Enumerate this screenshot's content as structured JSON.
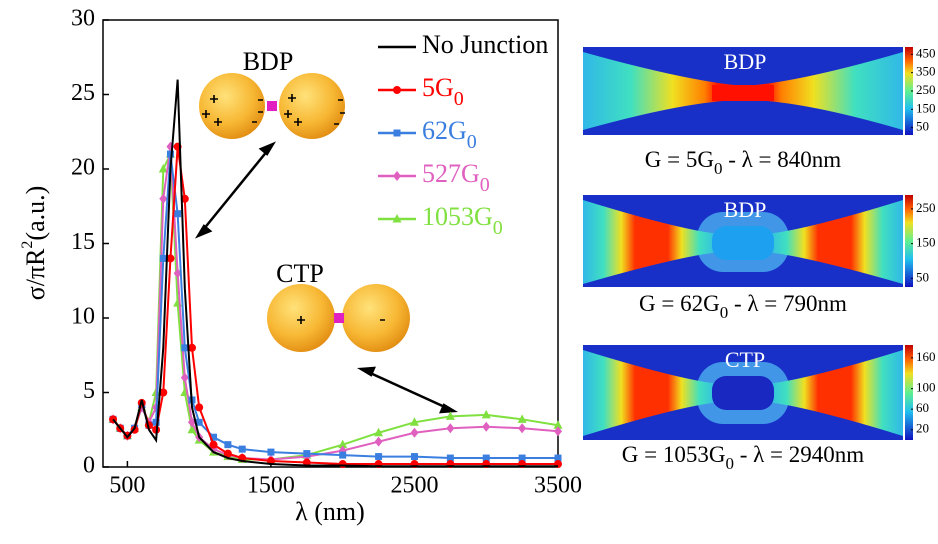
{
  "chart_data": {
    "type": "line",
    "xlabel": "λ (nm)",
    "ylabel": {
      "main": "σ/πR",
      "sup": "2",
      "tail": "(a.u.)"
    },
    "x": [
      400,
      450,
      500,
      550,
      600,
      650,
      700,
      750,
      800,
      850,
      900,
      950,
      1000,
      1100,
      1200,
      1300,
      1500,
      1750,
      2000,
      2250,
      2500,
      2750,
      3000,
      3250,
      3500
    ],
    "xlim": [
      330,
      3500
    ],
    "xticks": [
      500,
      1500,
      2500,
      3500
    ],
    "ylim": [
      0,
      30
    ],
    "yticks": [
      0,
      5,
      10,
      15,
      20,
      25,
      30
    ],
    "legend": "upper right",
    "series": [
      {
        "name": "No Junction",
        "color": "#000000",
        "marker": "none",
        "values": [
          3.2,
          2.6,
          2.0,
          2.6,
          4.5,
          2.5,
          1.8,
          8,
          20,
          26,
          12,
          4,
          2,
          1,
          0.6,
          0.4,
          0.2,
          0.1,
          0.1,
          0.05,
          0.05,
          0.05,
          0.05,
          0.05,
          0.05
        ]
      },
      {
        "name": "5G",
        "subscript": "0",
        "color": "#ff0000",
        "marker": "circle",
        "values": [
          3.2,
          2.6,
          2.1,
          2.5,
          4.3,
          2.8,
          2.5,
          5,
          14,
          21.5,
          18,
          8,
          4,
          1.5,
          0.9,
          0.6,
          0.4,
          0.3,
          0.2,
          0.2,
          0.2,
          0.2,
          0.2,
          0.2,
          0.2
        ]
      },
      {
        "name": "62G",
        "subscript": "0",
        "color": "#3a7fe0",
        "marker": "square",
        "values": [
          3.2,
          2.6,
          2.1,
          2.6,
          4.2,
          2.8,
          3,
          14,
          21,
          17,
          8,
          4.5,
          3,
          2,
          1.5,
          1.2,
          1,
          0.9,
          0.8,
          0.7,
          0.7,
          0.6,
          0.6,
          0.6,
          0.6
        ]
      },
      {
        "name": "527G",
        "subscript": "0",
        "color": "#e060c0",
        "marker": "diamond",
        "values": [
          3.2,
          2.6,
          2.1,
          2.6,
          4,
          3,
          4,
          18,
          21.5,
          13,
          6,
          3,
          2,
          1.2,
          0.8,
          0.6,
          0.5,
          0.7,
          1.1,
          1.7,
          2.3,
          2.6,
          2.7,
          2.6,
          2.4
        ]
      },
      {
        "name": "1053G",
        "subscript": "0",
        "color": "#80e040",
        "marker": "triangle",
        "values": [
          3.2,
          2.6,
          2.1,
          2.6,
          4,
          3,
          5,
          20,
          21,
          11,
          5,
          2.5,
          1.8,
          1,
          0.7,
          0.5,
          0.5,
          0.8,
          1.5,
          2.3,
          3,
          3.4,
          3.5,
          3.2,
          2.8
        ]
      }
    ],
    "annotations": [
      "BDP",
      "CTP"
    ]
  },
  "panels": [
    {
      "label": "BDP",
      "caption": {
        "head": "G = 5G",
        "sub": "0",
        "tail": " - λ = 840nm"
      },
      "colorbar": {
        "lim": [
          10,
          490
        ],
        "ticks": [
          50,
          150,
          250,
          350,
          450
        ]
      }
    },
    {
      "label": "BDP",
      "caption": {
        "head": "G = 62G",
        "sub": "0",
        "tail": " - λ = 790nm"
      },
      "colorbar": {
        "lim": [
          25,
          290
        ],
        "ticks": [
          50,
          150,
          250
        ]
      }
    },
    {
      "label": "CTP",
      "caption": {
        "head": "G = 1053G",
        "sub": "0",
        "tail": " - λ = 2940nm"
      },
      "colorbar": {
        "lim": [
          0,
          185
        ],
        "ticks": [
          20,
          60,
          100,
          160
        ]
      }
    }
  ]
}
